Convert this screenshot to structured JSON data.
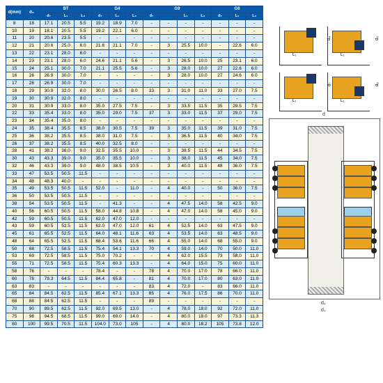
{
  "header": {
    "d_mm": "d(mm)",
    "d3": "d₃",
    "groups": [
      "BT",
      "G4",
      "G9",
      "G6"
    ],
    "subs": [
      "d₇",
      "L₁",
      "L₃",
      "d₇",
      "L₁",
      "L₃",
      "d₇",
      "L₁",
      "L₃",
      "d₇",
      "L₁",
      "L₃"
    ]
  },
  "rows": [
    [
      "8",
      "18",
      "17.1",
      "20.5",
      "5.5",
      "19.2",
      "18.9",
      "7.0",
      "-",
      "-",
      "-",
      "-",
      "-",
      "-",
      "-",
      "-"
    ],
    [
      "10",
      "19",
      "18.1",
      "20.5",
      "5.5",
      "19.2",
      "22.1",
      "6.0",
      "-",
      "-",
      "-",
      "-",
      "-",
      "-",
      "-",
      "-"
    ],
    [
      "11",
      "20",
      "20.6",
      "23.5",
      "5.5",
      "-",
      "-",
      "-",
      "-",
      "-",
      "-",
      "-",
      "-",
      "-",
      "-",
      "-"
    ],
    [
      "12",
      "21",
      "20.6",
      "25.0",
      "6.0",
      "21.6",
      "21.1",
      "7.0",
      "-",
      "3",
      "25.5",
      "10.0",
      "-",
      "22.6",
      "6.0"
    ],
    [
      "13",
      "22",
      "23.1",
      "28.0",
      "6.0",
      "-",
      "-",
      "-",
      "-",
      "-",
      "-",
      "-",
      "-",
      "-",
      "-",
      "-"
    ],
    [
      "14",
      "23",
      "23.1",
      "28.0",
      "6.0",
      "24.6",
      "21.1",
      "5.6",
      "-",
      "3",
      "26.5",
      "10.0",
      "25",
      "23.1",
      "6.0"
    ],
    [
      "15",
      "24",
      "25.1",
      "30.0",
      "7.0",
      "21.1",
      "25.5",
      "5.6",
      "-",
      "3",
      "28.0",
      "10.0",
      "27",
      "22.6",
      "6.0"
    ],
    [
      "16",
      "26",
      "26.9",
      "30.0",
      "7.0",
      "-",
      "-",
      "-",
      "-",
      "3",
      "28.0",
      "10.0",
      "27",
      "24.6",
      "6.0"
    ],
    [
      "17",
      "28",
      "26.9",
      "30.0",
      "7.0",
      "-",
      "-",
      "-",
      "-",
      "-",
      "-",
      "-",
      "-",
      "-",
      "-",
      "-"
    ],
    [
      "18",
      "29",
      "30.9",
      "32.0",
      "8.0",
      "30.0",
      "26.5",
      "8.0",
      "33",
      "3",
      "31.0",
      "11.0",
      "33",
      "27.0",
      "7.5"
    ],
    [
      "19",
      "30",
      "30.9",
      "32.0",
      "8.0",
      "-",
      "-",
      "-",
      "-",
      "-",
      "-",
      "-",
      "-",
      "-",
      "-",
      "-"
    ],
    [
      "20",
      "31",
      "30.9",
      "33.0",
      "8.0",
      "35.0",
      "27.5",
      "7.5",
      "-",
      "3",
      "33.5",
      "11.5",
      "35",
      "29.5",
      "7.5"
    ],
    [
      "22",
      "33",
      "35.4",
      "33.0",
      "8.0",
      "35.0",
      "29.0",
      "7.5",
      "37",
      "3",
      "33.0",
      "11.5",
      "37",
      "29.0",
      "7.5"
    ],
    [
      "23",
      "34",
      "35.4",
      "35.0",
      "8.0",
      "-",
      "-",
      "-",
      "-",
      "-",
      "-",
      "-",
      "-",
      "-",
      "-",
      "-"
    ],
    [
      "24",
      "35",
      "38.4",
      "35.5",
      "8.5",
      "38.0",
      "30.5",
      "7.5",
      "39",
      "3",
      "35.0",
      "11.5",
      "39",
      "31.0",
      "7.5"
    ],
    [
      "25",
      "36",
      "38.2",
      "35.5",
      "8.5",
      "38.0",
      "31.0",
      "7.5",
      "-",
      "3",
      "36.5",
      "11.5",
      "40",
      "34.0",
      "7.5"
    ],
    [
      "26",
      "37",
      "38.2",
      "35.5",
      "8.5",
      "40.0",
      "32.5",
      "8.0",
      "-",
      "-",
      "-",
      "-",
      "-",
      "-",
      "-",
      "-"
    ],
    [
      "28",
      "41",
      "38.2",
      "38.0",
      "9.0",
      "32.5",
      "35.5",
      "10.0",
      "-",
      "3",
      "38.5",
      "11.5",
      "44",
      "34.5",
      "7.5"
    ],
    [
      "30",
      "43",
      "43.3",
      "39.0",
      "9.0",
      "35.0",
      "35.5",
      "10.0",
      "-",
      "3",
      "38.0",
      "11.5",
      "45",
      "34.0",
      "7.5"
    ],
    [
      "32",
      "46",
      "43.3",
      "39.0",
      "9.0",
      "48.0",
      "38.5",
      "10.5",
      "-",
      "3",
      "40.0",
      "11.5",
      "48",
      "36.0",
      "7.5"
    ],
    [
      "33",
      "47",
      "53.5",
      "50.5",
      "11.5",
      "-",
      "-",
      "-",
      "-",
      "-",
      "-",
      "-",
      "-",
      "-",
      "-",
      "-"
    ],
    [
      "34",
      "48",
      "48.3",
      "40.0",
      "-",
      "-",
      "-",
      "-",
      "-",
      "-",
      "-",
      "-",
      "-",
      "-",
      "-",
      "-"
    ],
    [
      "35",
      "49",
      "53.5",
      "50.5",
      "11.5",
      "52.0",
      "-",
      "11.0",
      "-",
      "4",
      "40.0",
      "-",
      "50",
      "36.0",
      "7.5"
    ],
    [
      "36",
      "50",
      "53.5",
      "50.5",
      "11.5",
      "-",
      "-",
      "-",
      "-",
      "-",
      "-",
      "-",
      "-",
      "-",
      "-",
      "-"
    ],
    [
      "38",
      "54",
      "53.5",
      "50.5",
      "11.5",
      "-",
      "41.3",
      "-",
      "-",
      "4",
      "47.5",
      "14.0",
      "58",
      "42.5",
      "9.0"
    ],
    [
      "40",
      "56",
      "60.5",
      "50.5",
      "11.5",
      "58.0",
      "44.8",
      "10.8",
      "-",
      "4",
      "47.0",
      "14.0",
      "58",
      "45.0",
      "9.0"
    ],
    [
      "42",
      "59",
      "60.5",
      "50.5",
      "11.5",
      "62.0",
      "47.0",
      "12.0",
      "-",
      "-",
      "-",
      "-",
      "-",
      "-",
      "-",
      "-"
    ],
    [
      "43",
      "59",
      "60.5",
      "52.5",
      "11.5",
      "62.0",
      "47.0",
      "12.0",
      "61",
      "4",
      "52.5",
      "14.0",
      "63",
      "47.5",
      "9.0"
    ],
    [
      "45",
      "61",
      "65.5",
      "52.5",
      "11.5",
      "64.0",
      "48.1",
      "11.6",
      "63",
      "4",
      "53.5",
      "14.0",
      "63",
      "48.5",
      "9.0"
    ],
    [
      "48",
      "64",
      "65.5",
      "52.5",
      "11.5",
      "68.4",
      "53.6",
      "11.6",
      "66",
      "4",
      "55.0",
      "14.0",
      "68",
      "55.0",
      "9.0"
    ],
    [
      "50",
      "68",
      "72.5",
      "58.5",
      "11.5",
      "75.4",
      "54.1",
      "13.3",
      "70",
      "4",
      "59.0",
      "14.0",
      "70",
      "50.0",
      "11.0"
    ],
    [
      "53",
      "69",
      "72.5",
      "58.5",
      "11.5",
      "75.0",
      "70.2",
      "-",
      "-",
      "4",
      "62.0",
      "15.5",
      "73",
      "58.0",
      "11.0"
    ],
    [
      "55",
      "71",
      "72.5",
      "58.5",
      "11.5",
      "75.4",
      "60.3",
      "13.3",
      "-",
      "4",
      "64.0",
      "15.0",
      "75",
      "60.0",
      "11.0"
    ],
    [
      "58",
      "76",
      "-",
      "-",
      "-",
      "78.4",
      "-",
      "-",
      "78",
      "4",
      "70.0",
      "17.0",
      "78",
      "66.0",
      "11.0"
    ],
    [
      "60",
      "78",
      "79.3",
      "64.5",
      "11.5",
      "84.4",
      "65.8",
      "-",
      "81",
      "4",
      "70.0",
      "17.0",
      "80",
      "63.0",
      "11.0"
    ],
    [
      "63",
      "83",
      "-",
      "-",
      "-",
      "-",
      "-",
      "-",
      "83",
      "4",
      "72.0",
      "-",
      "83",
      "66.0",
      "11.0"
    ],
    [
      "65",
      "84",
      "84.5",
      "62.5",
      "11.5",
      "85.4",
      "67.1",
      "13.3",
      "85",
      "4",
      "76.0",
      "17.5",
      "86",
      "70.0",
      "11.0"
    ],
    [
      "68",
      "88",
      "84.5",
      "62.5",
      "11.5",
      "-",
      "-",
      "-",
      "89",
      "-",
      "-",
      "-",
      "-",
      "-",
      "-",
      "-"
    ],
    [
      "70",
      "90",
      "89.5",
      "62.5",
      "11.5",
      "92.0",
      "69.5",
      "13.0",
      "-",
      "4",
      "78.0",
      "18.0",
      "92",
      "72.0",
      "11.0"
    ],
    [
      "75",
      "98",
      "94.5",
      "68.5",
      "11.5",
      "99.0",
      "69.0",
      "14.0",
      "-",
      "4",
      "80.0",
      "18.0",
      "97",
      "73.3",
      "11.3"
    ],
    [
      "80",
      "100",
      "99.5",
      "70.5",
      "11.5",
      "104.0",
      "73.0",
      "105",
      "-",
      "4",
      "80.0",
      "18.2",
      "105",
      "73.8",
      "12.0"
    ]
  ],
  "colors": {
    "header_bg": "#085aa8",
    "even_bg": "#d9ecf5",
    "odd_bg": "#f7f4d9",
    "border": "#1a4d8f",
    "seal_body": "#e8a420",
    "seal_lip": "#173a6b"
  },
  "cross_labels": {
    "bottom": "L₁",
    "right_variants": [
      "d₄",
      "d₅",
      "d₇",
      "d₈"
    ]
  },
  "big_dims": {
    "top": "d",
    "bottom_outer": "d₃",
    "bottom_inner": "d₆",
    "right": "L₁"
  }
}
